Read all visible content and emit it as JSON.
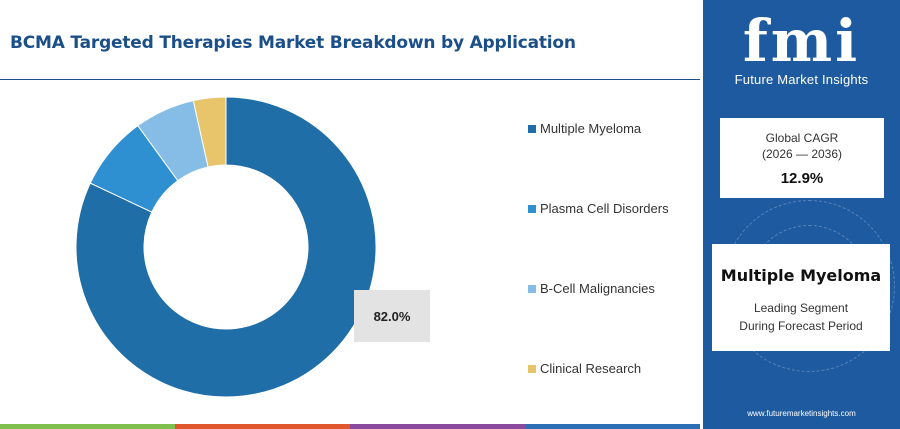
{
  "title": "BCMA Targeted Therapies Market Breakdown by Application",
  "chart_data": {
    "type": "pie",
    "donut": true,
    "categories": [
      "Multiple Myeloma",
      "Plasma Cell Disorders",
      "B-Cell Malignancies",
      "Clinical Research"
    ],
    "values": [
      82.0,
      8.0,
      6.5,
      3.5
    ],
    "colors": [
      "#1f6ea8",
      "#2e8fd1",
      "#85bde6",
      "#e8c46a"
    ],
    "data_labels": [
      "82.0%"
    ],
    "legend_placement": "right"
  },
  "legend": {
    "items": [
      {
        "label": "Multiple Myeloma",
        "color": "#1f6ea8"
      },
      {
        "label": "Plasma Cell Disorders",
        "color": "#2e8fd1"
      },
      {
        "label": "B-Cell Malignancies",
        "color": "#85bde6"
      },
      {
        "label": "Clinical Research",
        "color": "#e8c46a"
      }
    ]
  },
  "sidebar": {
    "logo_text": "fmi",
    "logo_subtitle": "Future Market Insights",
    "cagr_label": "Global CAGR",
    "cagr_range": "(2026 — 2036)",
    "cagr_value": "12.9%",
    "segment_name": "Multiple Myeloma",
    "segment_line1": "Leading Segment",
    "segment_line2": "During Forecast Period",
    "website": "www.futuremarketinsights.com"
  },
  "bottom_bar_colors": [
    "#7fbf4d",
    "#e0572e",
    "#8a4a9e",
    "#2c6fb5"
  ]
}
